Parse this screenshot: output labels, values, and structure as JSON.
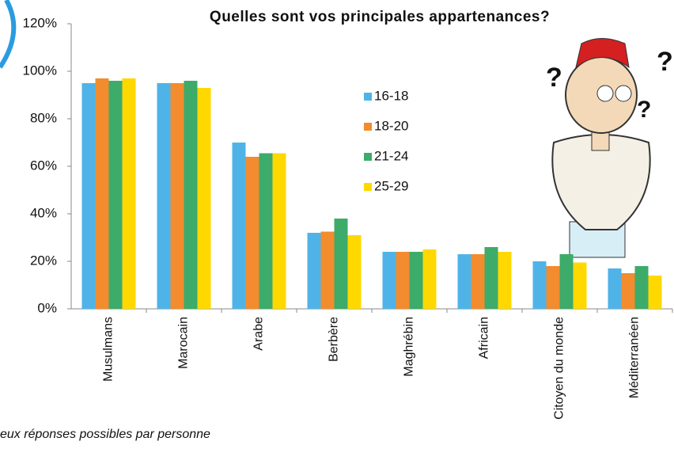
{
  "chart_data": {
    "type": "bar",
    "title": "Quelles sont vos principales appartenances?",
    "categories": [
      "Musulmans",
      "Marocain",
      "Arabe",
      "Berbère",
      "Maghrébin",
      "Africain",
      "Citoyen du monde",
      "Méditerranéen"
    ],
    "series": [
      {
        "name": "16-18",
        "color": "#4fb3e8",
        "values": [
          95,
          95,
          70,
          32,
          24,
          23,
          20,
          17
        ]
      },
      {
        "name": "18-20",
        "color": "#f28c2e",
        "values": [
          97,
          95,
          64,
          32.5,
          24,
          23,
          18,
          15
        ]
      },
      {
        "name": "21-24",
        "color": "#3dab6a",
        "values": [
          96,
          96,
          65.5,
          38,
          24,
          26,
          23,
          18
        ]
      },
      {
        "name": "25-29",
        "color": "#ffd800",
        "values": [
          97,
          93,
          65.5,
          31,
          25,
          24,
          19.5,
          14
        ]
      }
    ],
    "ylim": [
      0,
      120
    ],
    "yticks": [
      {
        "value": 0,
        "label": "0%"
      },
      {
        "value": 20,
        "label": "20%"
      },
      {
        "value": 40,
        "label": "40%"
      },
      {
        "value": 60,
        "label": "60%"
      },
      {
        "value": 80,
        "label": "80%"
      },
      {
        "value": 100,
        "label": "100%"
      },
      {
        "value": 120,
        "label": "120%"
      }
    ],
    "footnote": "eux réponses possibles par personne"
  }
}
